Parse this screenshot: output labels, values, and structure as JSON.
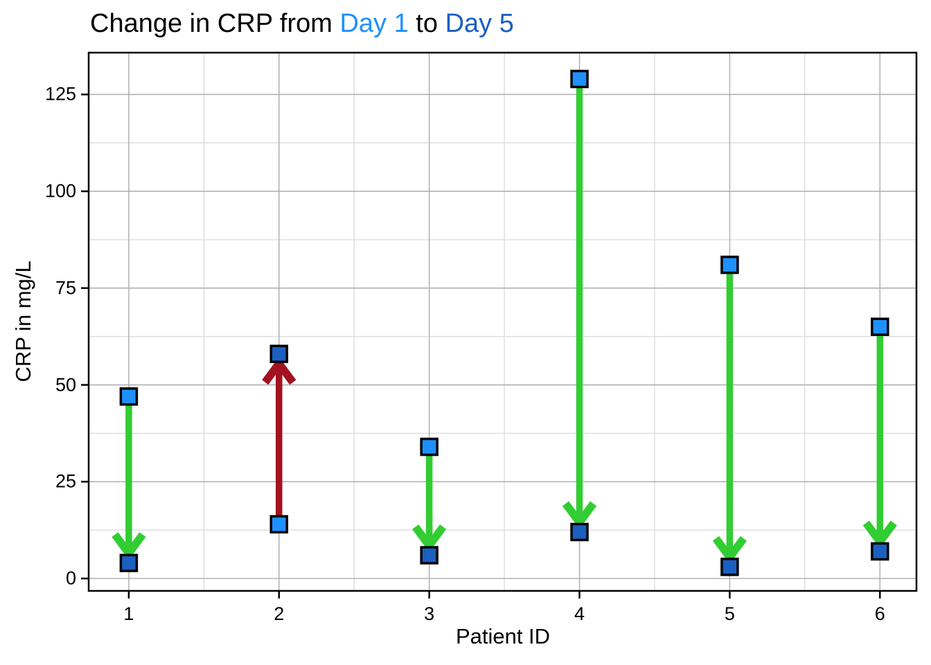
{
  "title": {
    "parts": [
      {
        "text": "Change in CRP from ",
        "color": "#000000"
      },
      {
        "text": "Day 1",
        "color": "#1E90FF"
      },
      {
        "text": " to ",
        "color": "#000000"
      },
      {
        "text": "Day 5",
        "color": "#1B5FC1"
      }
    ],
    "full_text": "Change in CRP from Day 1 to Day 5"
  },
  "colors": {
    "day1_marker": "#1E90FF",
    "day5_marker": "#1B5FC1",
    "marker_edge": "#000000",
    "decrease_arrow": "#32CD32",
    "increase_arrow": "#A3121F",
    "grid_major": "#ababab",
    "grid_minor": "#d9d9d9",
    "spine": "#000000",
    "background": "#ffffff"
  },
  "chart_data": {
    "type": "scatter",
    "style": "paired-points-with-change-arrows",
    "title": "Change in CRP from Day 1 to Day 5",
    "xlabel": "Patient ID",
    "ylabel": "CRP in mg/L",
    "categories": [
      "1",
      "2",
      "3",
      "4",
      "5",
      "6"
    ],
    "x": [
      1,
      2,
      3,
      4,
      5,
      6
    ],
    "series": [
      {
        "name": "Day 1",
        "marker": "square",
        "color": "#1E90FF",
        "values": [
          47,
          14,
          34,
          129,
          81,
          65
        ]
      },
      {
        "name": "Day 5",
        "marker": "square",
        "color": "#1B5FC1",
        "values": [
          4,
          58,
          6,
          12,
          3,
          7
        ]
      }
    ],
    "arrows": [
      {
        "patient": "1",
        "from": 47,
        "to": 4,
        "direction": "decrease"
      },
      {
        "patient": "2",
        "from": 14,
        "to": 58,
        "direction": "increase"
      },
      {
        "patient": "3",
        "from": 34,
        "to": 6,
        "direction": "decrease"
      },
      {
        "patient": "4",
        "from": 129,
        "to": 12,
        "direction": "decrease"
      },
      {
        "patient": "5",
        "from": 81,
        "to": 3,
        "direction": "decrease"
      },
      {
        "patient": "6",
        "from": 65,
        "to": 7,
        "direction": "decrease"
      }
    ],
    "yticks": [
      0,
      25,
      50,
      75,
      100,
      125
    ],
    "ytick_labels": [
      "0",
      "25",
      "50",
      "75",
      "100",
      "125"
    ],
    "xlim": [
      0.733,
      6.243
    ],
    "ylim": [
      -3.2,
      135.8
    ],
    "grid": "on",
    "grid_major_step_y": 25,
    "grid_minor_step_y": 12.5,
    "grid_minor_step_x": 0.5,
    "legend": "none"
  }
}
